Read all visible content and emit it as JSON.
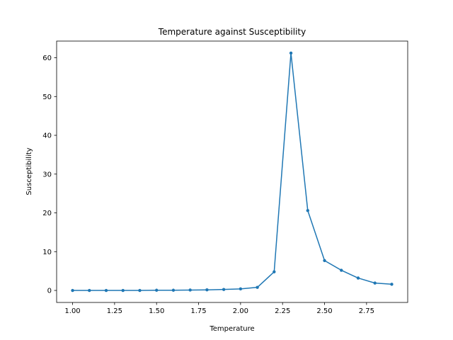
{
  "chart_data": {
    "type": "line",
    "title": "Temperature against Susceptibility",
    "xlabel": "Temperature",
    "ylabel": "Susceptibility",
    "xlim": [
      0.905,
      2.995
    ],
    "ylim": [
      -3.1,
      64.3
    ],
    "xticks": [
      1.0,
      1.25,
      1.5,
      1.75,
      2.0,
      2.25,
      2.5,
      2.75
    ],
    "xtick_labels": [
      "1.00",
      "1.25",
      "1.50",
      "1.75",
      "2.00",
      "2.25",
      "2.50",
      "2.75"
    ],
    "yticks": [
      0,
      10,
      20,
      30,
      40,
      50,
      60
    ],
    "ytick_labels": [
      "0",
      "10",
      "20",
      "30",
      "40",
      "50",
      "60"
    ],
    "grid": false,
    "legend": "none",
    "marker": "circle",
    "series": [
      {
        "color": "#1f77b4",
        "x": [
          1.0,
          1.1,
          1.2,
          1.3,
          1.4,
          1.5,
          1.6,
          1.7,
          1.8,
          1.9,
          2.0,
          2.1,
          2.2,
          2.3,
          2.4,
          2.5,
          2.6,
          2.7,
          2.8,
          2.9
        ],
        "y": [
          0.0,
          0.0,
          0.0,
          0.0,
          0.0,
          0.05,
          0.05,
          0.1,
          0.15,
          0.25,
          0.4,
          0.8,
          4.8,
          61.2,
          20.6,
          7.7,
          5.2,
          3.2,
          1.9,
          1.6
        ]
      }
    ]
  }
}
